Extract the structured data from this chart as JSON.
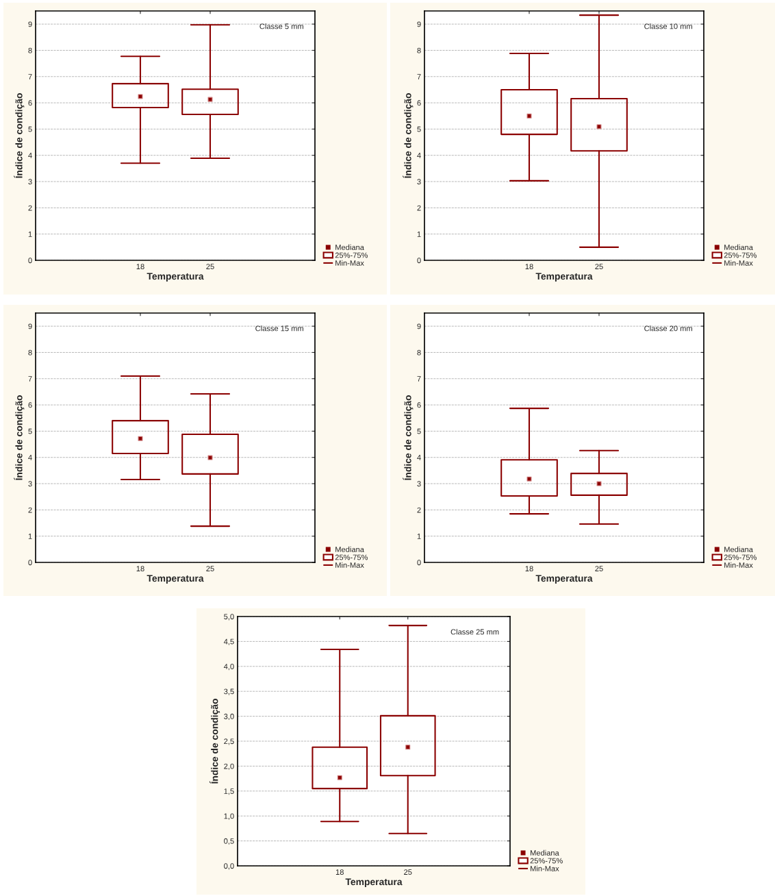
{
  "chart_data": [
    {
      "type": "box",
      "categories": [
        "18",
        "25"
      ],
      "xlabel": "Temperatura",
      "ylabel": "Índice de condição",
      "ylim": [
        0,
        9.5
      ],
      "yticks": [
        0,
        1,
        2,
        3,
        4,
        5,
        6,
        7,
        8,
        9
      ],
      "grid": "y",
      "color": "#8b0000",
      "annotations": [
        "Classe 5 mm",
        "Mediana",
        "25%-75%",
        "Min-Max"
      ],
      "boxes": [
        {
          "low": 3.7,
          "q1": 5.82,
          "median": 6.24,
          "q3": 6.73,
          "high": 7.77
        },
        {
          "low": 3.89,
          "q1": 5.56,
          "median": 6.13,
          "q3": 6.52,
          "high": 8.97
        }
      ]
    },
    {
      "type": "box",
      "categories": [
        "18",
        "25"
      ],
      "xlabel": "Temperatura",
      "ylabel": "Índice de condição",
      "ylim": [
        0,
        9.5
      ],
      "yticks": [
        0,
        1,
        2,
        3,
        4,
        5,
        6,
        7,
        8,
        9
      ],
      "grid": "y",
      "color": "#8b0000",
      "annotations": [
        "Classe 10 mm",
        "Mediana",
        "25%-75%",
        "Min-Max"
      ],
      "boxes": [
        {
          "low": 3.03,
          "q1": 4.8,
          "median": 5.5,
          "q3": 6.5,
          "high": 7.88
        },
        {
          "low": 0.5,
          "q1": 4.17,
          "median": 5.09,
          "q3": 6.16,
          "high": 9.34
        }
      ]
    },
    {
      "type": "box",
      "categories": [
        "18",
        "25"
      ],
      "xlabel": "Temperatura",
      "ylabel": "Índice de condição",
      "ylim": [
        0,
        9.5
      ],
      "yticks": [
        0,
        1,
        2,
        3,
        4,
        5,
        6,
        7,
        8,
        9
      ],
      "grid": "y",
      "color": "#8b0000",
      "annotations": [
        "Classe 15 mm",
        "Mediana",
        "25%-75%",
        "Min-Max"
      ],
      "boxes": [
        {
          "low": 3.16,
          "q1": 4.15,
          "median": 4.72,
          "q3": 5.4,
          "high": 7.1
        },
        {
          "low": 1.38,
          "q1": 3.37,
          "median": 3.99,
          "q3": 4.88,
          "high": 6.42
        }
      ]
    },
    {
      "type": "box",
      "categories": [
        "18",
        "25"
      ],
      "xlabel": "Temperatura",
      "ylabel": "Índice de condição",
      "ylim": [
        0,
        9.5
      ],
      "yticks": [
        0,
        1,
        2,
        3,
        4,
        5,
        6,
        7,
        8,
        9
      ],
      "grid": "y",
      "color": "#8b0000",
      "annotations": [
        "Classe 20 mm",
        "Mediana",
        "25%-75%",
        "Min-Max"
      ],
      "boxes": [
        {
          "low": 1.85,
          "q1": 2.53,
          "median": 3.18,
          "q3": 3.91,
          "high": 5.87
        },
        {
          "low": 1.46,
          "q1": 2.56,
          "median": 3.0,
          "q3": 3.39,
          "high": 4.26
        }
      ]
    },
    {
      "type": "box",
      "categories": [
        "18",
        "25"
      ],
      "xlabel": "Temperatura",
      "ylabel": "Índice de condição",
      "ylim": [
        0,
        5.0
      ],
      "yticks": [
        {
          "value": 0,
          "label": "0,0"
        },
        {
          "value": 0.5,
          "label": "0,5"
        },
        {
          "value": 1,
          "label": "1,0"
        },
        {
          "value": 1.5,
          "label": "1,5"
        },
        {
          "value": 2,
          "label": "2,0"
        },
        {
          "value": 2.5,
          "label": "2,5"
        },
        {
          "value": 3,
          "label": "3,0"
        },
        {
          "value": 3.5,
          "label": "3,5"
        },
        {
          "value": 4,
          "label": "4,0"
        },
        {
          "value": 4.5,
          "label": "4,5"
        },
        {
          "value": 5,
          "label": "5,0"
        }
      ],
      "grid": "y",
      "color": "#8b0000",
      "annotations": [
        "Classe 25 mm",
        "Mediana",
        "25%-75%",
        "Min-Max"
      ],
      "boxes": [
        {
          "low": 0.89,
          "q1": 1.55,
          "median": 1.77,
          "q3": 2.38,
          "high": 4.34
        },
        {
          "low": 0.65,
          "q1": 1.81,
          "median": 2.38,
          "q3": 3.01,
          "high": 4.82
        }
      ]
    }
  ]
}
